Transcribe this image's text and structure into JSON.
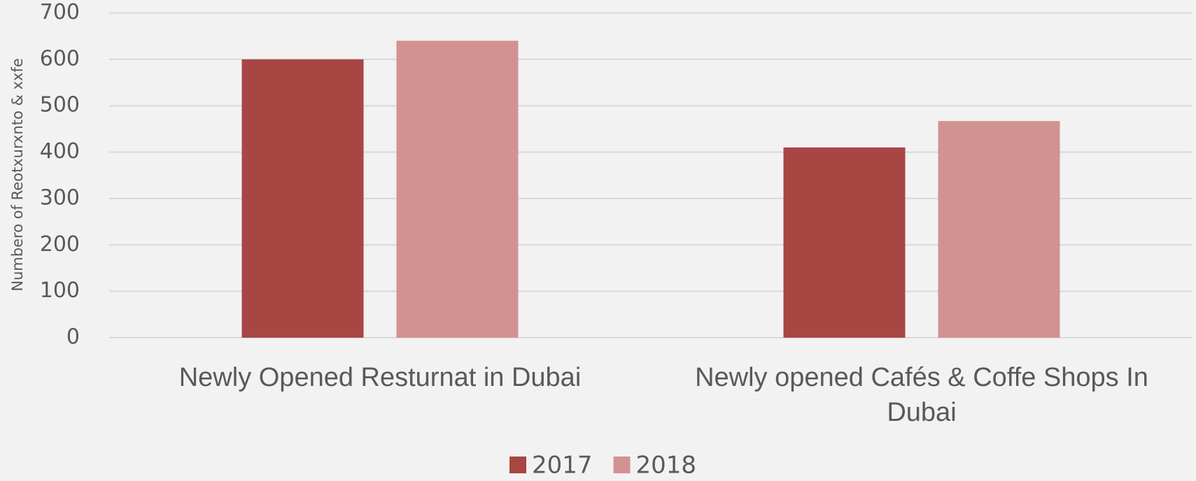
{
  "chart_data": {
    "type": "bar",
    "y_label": "Numbero of Reotxurxnto & xxfe",
    "categories": [
      "Newly Opened Resturnat in Dubai",
      "Newly opened Cafés & Coffe Shops In Dubai"
    ],
    "series": [
      {
        "name": "2017",
        "color": "#a84644",
        "values": [
          600,
          410
        ]
      },
      {
        "name": "2018",
        "color": "#d39292",
        "values": [
          640,
          467
        ]
      }
    ],
    "ylim": [
      0,
      700
    ],
    "yticks": [
      0,
      100,
      200,
      300,
      400,
      500,
      600,
      700
    ],
    "grid": true,
    "legend": "bottom"
  }
}
